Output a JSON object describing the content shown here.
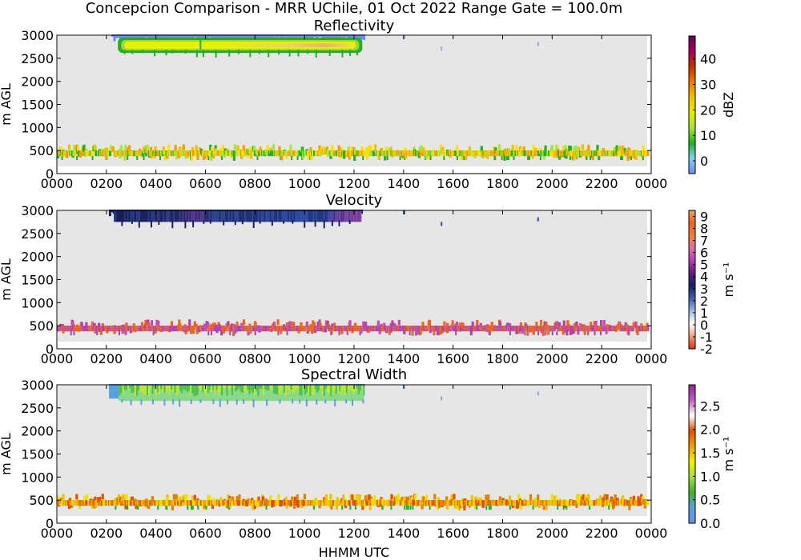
{
  "figure": {
    "suptitle": "Concepcion Comparison - MRR UChile, 01 Oct 2022 Range Gate = 100.0m",
    "xlabel": "HHMM UTC"
  },
  "chart_data": [
    {
      "type": "heatmap",
      "title": "Reflectivity",
      "ylabel": "m AGL",
      "xlim": [
        0,
        2400
      ],
      "ylim": [
        0,
        3000
      ],
      "x_ticks": [
        "0000",
        "0200",
        "0400",
        "0600",
        "0800",
        "1000",
        "1200",
        "1400",
        "1600",
        "1800",
        "2000",
        "2200",
        "0000"
      ],
      "y_ticks": [
        "0",
        "500",
        "1000",
        "1500",
        "2000",
        "2500",
        "3000"
      ],
      "colorbar": {
        "label": "dBZ",
        "min": -5,
        "max": 49,
        "ticks": [
          "0",
          "10",
          "20",
          "30",
          "40"
        ],
        "tick_values": [
          0,
          10,
          20,
          30,
          40
        ],
        "colors": [
          "#6f8ce8",
          "#7fd4f2",
          "#22b022",
          "#a4e63a",
          "#e6ee00",
          "#f0c000",
          "#f07800",
          "#c83000",
          "#a80060",
          "#5a0a4a"
        ]
      },
      "features": [
        {
          "name": "cloud layer",
          "t_start": 240,
          "t_end": 1240,
          "alt_min": 2650,
          "alt_max": 3000,
          "values_dbz": [
            5,
            35
          ],
          "peak_dbz": 35
        },
        {
          "name": "near-surface layer",
          "t_start": 0,
          "t_end": 2400,
          "alt_min": 300,
          "alt_max": 600,
          "values_dbz": [
            10,
            22
          ]
        }
      ]
    },
    {
      "type": "heatmap",
      "title": "Velocity",
      "ylabel": "m s⁻¹",
      "ylabel_panel": "m AGL",
      "xlim": [
        0,
        2400
      ],
      "ylim": [
        0,
        3000
      ],
      "x_ticks": [
        "0000",
        "0200",
        "0400",
        "0600",
        "0800",
        "1000",
        "1200",
        "1400",
        "1600",
        "1800",
        "2000",
        "2200",
        "0000"
      ],
      "y_ticks": [
        "0",
        "500",
        "1000",
        "1500",
        "2000",
        "2500",
        "3000"
      ],
      "colorbar": {
        "label": "m s⁻¹",
        "min": -2,
        "max": 9.5,
        "ticks": [
          "-2",
          "-1",
          "0",
          "1",
          "2",
          "3",
          "4",
          "5",
          "6",
          "7",
          "8",
          "9"
        ],
        "tick_values": [
          -2,
          -1,
          0,
          1,
          2,
          3,
          4,
          5,
          6,
          7,
          8,
          9
        ],
        "colors": [
          "#d83010",
          "#f0a080",
          "#ffffff",
          "#a0b8e0",
          "#4060b0",
          "#1a2060",
          "#5a2070",
          "#b040b0",
          "#e070a0",
          "#f08040",
          "#f06020",
          "#f0a060"
        ]
      },
      "features": [
        {
          "name": "cloud layer",
          "t_start": 230,
          "t_end": 1230,
          "alt_min": 2750,
          "alt_max": 3000,
          "values_ms": [
            2.5,
            5.5
          ]
        },
        {
          "name": "near-surface layer",
          "t_start": 0,
          "t_end": 2400,
          "alt_min": 300,
          "alt_max": 600,
          "values_ms": [
            6,
            8
          ]
        }
      ]
    },
    {
      "type": "heatmap",
      "title": "Spectral Width",
      "ylabel": "m s⁻¹",
      "ylabel_panel": "m AGL",
      "xlim": [
        0,
        2400
      ],
      "ylim": [
        0,
        3000
      ],
      "x_ticks": [
        "0000",
        "0200",
        "0400",
        "0600",
        "0800",
        "1000",
        "1200",
        "1400",
        "1600",
        "1800",
        "2000",
        "2200",
        "0000"
      ],
      "y_ticks": [
        "0",
        "500",
        "1000",
        "1500",
        "2000",
        "2500",
        "3000"
      ],
      "colorbar": {
        "label": "m s⁻¹",
        "min": 0,
        "max": 2.95,
        "ticks": [
          "0.0",
          "0.5",
          "1.0",
          "1.5",
          "2.0",
          "2.5"
        ],
        "tick_values": [
          0,
          0.5,
          1.0,
          1.5,
          2.0,
          2.5
        ],
        "colors": [
          "#7090f0",
          "#5aa0e0",
          "#40b030",
          "#a0e040",
          "#f0f000",
          "#f0a000",
          "#e05000",
          "#ffffff",
          "#c060c0",
          "#8a2a8a"
        ]
      },
      "features": [
        {
          "name": "cloud layer",
          "t_start": 230,
          "t_end": 1240,
          "alt_min": 2650,
          "alt_max": 3000,
          "values_ms": [
            0.6,
            1.0
          ]
        },
        {
          "name": "near-surface layer",
          "t_start": 0,
          "t_end": 2400,
          "alt_min": 300,
          "alt_max": 600,
          "values_ms": [
            1.3,
            2.0
          ]
        }
      ]
    }
  ]
}
